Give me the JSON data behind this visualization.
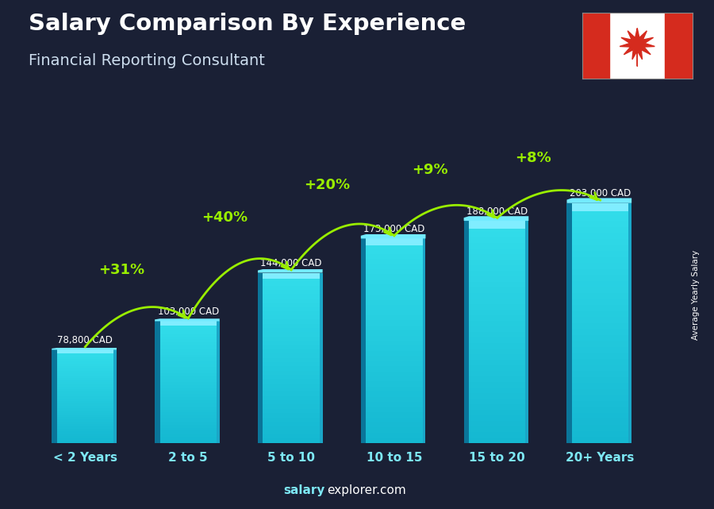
{
  "title1": "Salary Comparison By Experience",
  "title2": "Financial Reporting Consultant",
  "categories": [
    "< 2 Years",
    "2 to 5",
    "5 to 10",
    "10 to 15",
    "15 to 20",
    "20+ Years"
  ],
  "values": [
    78800,
    103000,
    144000,
    173000,
    188000,
    203000
  ],
  "value_labels": [
    "78,800 CAD",
    "103,000 CAD",
    "144,000 CAD",
    "173,000 CAD",
    "188,000 CAD",
    "203,000 CAD"
  ],
  "pct_labels": [
    "+31%",
    "+40%",
    "+20%",
    "+9%",
    "+8%"
  ],
  "bar_color_main": "#1ac8e0",
  "bar_color_dark": "#0e7fa0",
  "bar_color_light": "#5adeee",
  "bar_color_right": "#17b0c8",
  "bg_color": "#1a2035",
  "text_color_white": "#ffffff",
  "text_color_green": "#99ee00",
  "ylabel": "Average Yearly Salary",
  "footer_bold": "salary",
  "footer_normal": "explorer.com",
  "ylim": [
    0,
    250000
  ],
  "bar_width": 0.55
}
